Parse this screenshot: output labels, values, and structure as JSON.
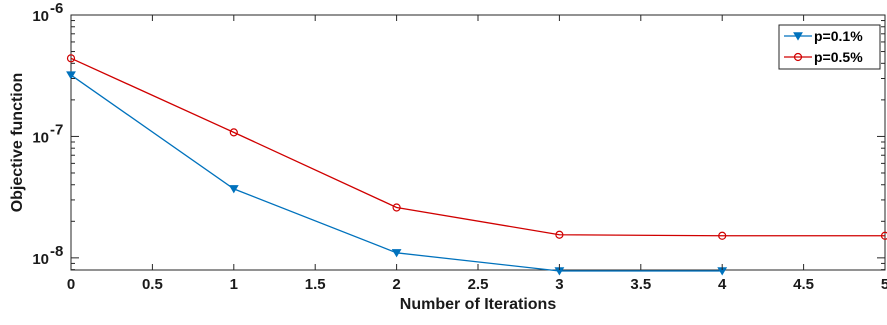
{
  "chart_data": {
    "type": "line",
    "xlabel": "Number of Iterations",
    "ylabel": "Objective function",
    "xlim": [
      0,
      5
    ],
    "ylim_log10": [
      -8.1,
      -6
    ],
    "y_scale": "log",
    "x_ticks": [
      0,
      0.5,
      1,
      1.5,
      2,
      2.5,
      3,
      3.5,
      4,
      4.5,
      5
    ],
    "x_tick_labels": [
      "0",
      "0.5",
      "1",
      "1.5",
      "2",
      "2.5",
      "3",
      "3.5",
      "4",
      "4.5",
      "5"
    ],
    "y_ticks_exp": [
      -8,
      -7,
      -6
    ],
    "y_tick_base": "10",
    "grid": false,
    "legend_position": "top-right",
    "series": [
      {
        "name": "p=0.1%",
        "color": "#0072BD",
        "marker": "triangle-down",
        "x": [
          0,
          1,
          2,
          3,
          4
        ],
        "y": [
          3.2e-07,
          3.7e-08,
          1.1e-08,
          7.8e-09,
          7.8e-09
        ]
      },
      {
        "name": "p=0.5%",
        "color": "#D00000",
        "marker": "circle",
        "x": [
          0,
          1,
          2,
          3,
          4,
          5
        ],
        "y": [
          4.4e-07,
          1.08e-07,
          2.6e-08,
          1.55e-08,
          1.52e-08,
          1.52e-08
        ]
      }
    ]
  }
}
